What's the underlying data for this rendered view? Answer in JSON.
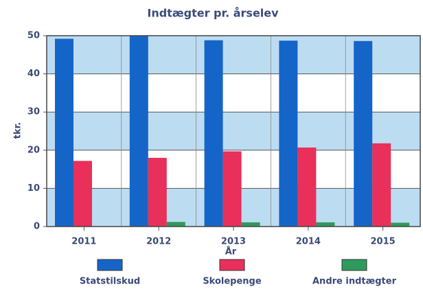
{
  "chart_data": {
    "type": "bar",
    "title": "Indtægter pr. årselev",
    "y_label": "tkr.",
    "x_label": "År",
    "categories": [
      "2011",
      "2012",
      "2013",
      "2014",
      "2015"
    ],
    "series": [
      {
        "name": "Statstilskud",
        "color": "#1565c8",
        "values": [
          49.2,
          50,
          48.8,
          48.7,
          48.6
        ]
      },
      {
        "name": "Skolepenge",
        "color": "#e8305a",
        "values": [
          17.2,
          18,
          19.7,
          20.7,
          21.8
        ]
      },
      {
        "name": "Andre indtægter",
        "color": "#2e9a5c",
        "values": [
          0,
          1.2,
          1.1,
          1.1,
          1.0
        ]
      }
    ],
    "ylim": [
      0,
      50
    ],
    "yticks": [
      0,
      10,
      20,
      30,
      40,
      50
    ],
    "grid": true,
    "band_color": "#bcdcf2"
  }
}
